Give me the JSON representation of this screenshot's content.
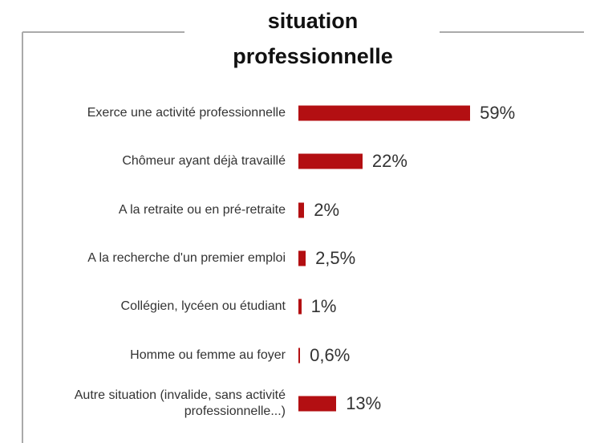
{
  "chart_data": {
    "type": "bar",
    "orientation": "horizontal",
    "title": "situation professionnelle",
    "categories": [
      "Exerce une activité professionnelle",
      "Chômeur ayant déjà travaillé",
      "A la retraite ou en pré-retraite",
      "A la recherche d'un premier emploi",
      "Collégien, lycéen ou étudiant",
      "Homme ou femme au foyer",
      "Autre situation (invalide, sans activité professionnelle...)"
    ],
    "values": [
      59,
      22,
      2,
      2.5,
      1,
      0.6,
      13
    ],
    "value_labels": [
      "59%",
      "22%",
      "2%",
      "2,5%",
      "1%",
      "0,6%",
      "13%"
    ],
    "color": "#b30f12"
  }
}
